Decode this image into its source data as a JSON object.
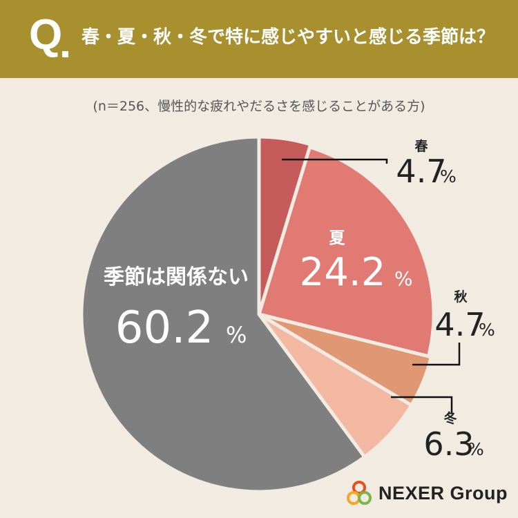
{
  "header": {
    "q_mark": "Q",
    "question": "春・夏・秋・冬で特に感じやすいと感じる季節は？"
  },
  "subtitle": "(n＝256、慢性的な疲れやだるさを感じることがある方)",
  "chart_data": {
    "type": "pie",
    "title": "春・夏・秋・冬で特に感じやすいと感じる季節は？",
    "subtitle": "(n＝256、慢性的な疲れやだるさを感じることがある方)",
    "unit": "%",
    "slices": [
      {
        "label": "春",
        "value": 4.7,
        "value_text": "4.7",
        "color": "#c65b5b"
      },
      {
        "label": "夏",
        "value": 24.2,
        "value_text": "24.2",
        "color": "#e07a72"
      },
      {
        "label": "秋",
        "value": 4.7,
        "value_text": "4.7",
        "color": "#df9774"
      },
      {
        "label": "冬",
        "value": 6.3,
        "value_text": "6.3",
        "color": "#f2b8a2"
      },
      {
        "label": "季節は関係ない",
        "value": 60.2,
        "value_text": "60.2",
        "color": "#7f7f7f"
      }
    ],
    "start": "12 o'clock",
    "direction": "clockwise",
    "highlighted_slice": "夏"
  },
  "brand": {
    "name": "NEXER Group",
    "logo_colors": [
      "#e94e1b",
      "#f5a623",
      "#7ab648"
    ]
  }
}
